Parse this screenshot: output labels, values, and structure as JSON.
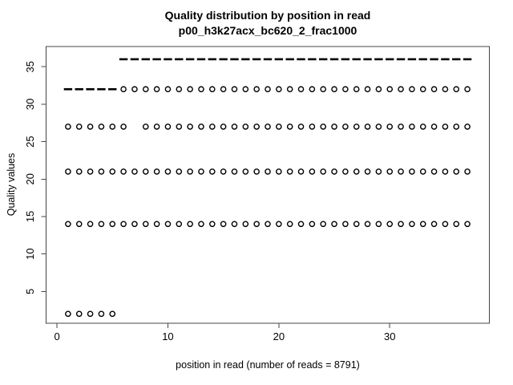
{
  "chart_data": {
    "type": "scatter",
    "title": "Quality distribution by position in read",
    "subtitle": "p00_h3k27acx_bc620_2_frac1000",
    "xlabel": "position in read (number of reads = 8791)",
    "ylabel": "Quality values",
    "number_of_reads": 8791,
    "read_length": 37,
    "grid": false,
    "xlim": [
      -0.98,
      38.98
    ],
    "ylim": [
      0.75,
      37.7
    ],
    "x_ticks": [
      0,
      10,
      20,
      30
    ],
    "y_ticks": [
      5,
      10,
      15,
      20,
      25,
      30,
      35
    ],
    "series": [
      {
        "name": "median-quality-32",
        "marker": "dash",
        "y": 32,
        "x": [
          1,
          2,
          3,
          4,
          5
        ]
      },
      {
        "name": "median-quality-36",
        "marker": "dash",
        "y": 36,
        "x": [
          6,
          7,
          8,
          9,
          10,
          11,
          12,
          13,
          14,
          15,
          16,
          17,
          18,
          19,
          20,
          21,
          22,
          23,
          24,
          25,
          26,
          27,
          28,
          29,
          30,
          31,
          32,
          33,
          34,
          35,
          36,
          37
        ]
      },
      {
        "name": "outliers-quality-32",
        "marker": "circle",
        "y": 32,
        "x": [
          6,
          7,
          8,
          9,
          10,
          11,
          12,
          13,
          14,
          15,
          16,
          17,
          18,
          19,
          20,
          21,
          22,
          23,
          24,
          25,
          26,
          27,
          28,
          29,
          30,
          31,
          32,
          33,
          34,
          35,
          36,
          37
        ]
      },
      {
        "name": "outliers-quality-27",
        "marker": "circle",
        "y": 27,
        "x": [
          1,
          2,
          3,
          4,
          5,
          6,
          8,
          9,
          10,
          11,
          12,
          13,
          14,
          15,
          16,
          17,
          18,
          19,
          20,
          21,
          22,
          23,
          24,
          25,
          26,
          27,
          28,
          29,
          30,
          31,
          32,
          33,
          34,
          35,
          36,
          37
        ]
      },
      {
        "name": "outliers-quality-21",
        "marker": "circle",
        "y": 21,
        "x": [
          1,
          2,
          3,
          4,
          5,
          6,
          7,
          8,
          9,
          10,
          11,
          12,
          13,
          14,
          15,
          16,
          17,
          18,
          19,
          20,
          21,
          22,
          23,
          24,
          25,
          26,
          27,
          28,
          29,
          30,
          31,
          32,
          33,
          34,
          35,
          36,
          37
        ]
      },
      {
        "name": "outliers-quality-14",
        "marker": "circle",
        "y": 14,
        "x": [
          1,
          2,
          3,
          4,
          5,
          6,
          7,
          8,
          9,
          10,
          11,
          12,
          13,
          14,
          15,
          16,
          17,
          18,
          19,
          20,
          21,
          22,
          23,
          24,
          25,
          26,
          27,
          28,
          29,
          30,
          31,
          32,
          33,
          34,
          35,
          36,
          37
        ]
      },
      {
        "name": "outliers-quality-2",
        "marker": "circle",
        "y": 2,
        "x": [
          1,
          2,
          3,
          4,
          5
        ]
      }
    ],
    "colors": {
      "marker": "#000000",
      "axis": "#454545",
      "text": "#000000",
      "background": "#ffffff"
    }
  }
}
